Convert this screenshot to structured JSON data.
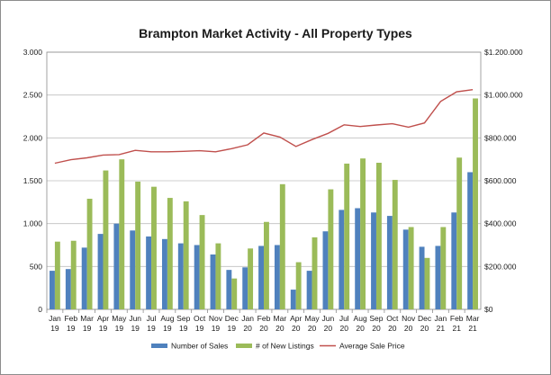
{
  "chart_data": {
    "type": "bar",
    "title": "Brampton Market Activity - All Property Types",
    "categories": [
      [
        "Jan",
        "19"
      ],
      [
        "Feb",
        "19"
      ],
      [
        "Mar",
        "19"
      ],
      [
        "Apr",
        "19"
      ],
      [
        "May",
        "19"
      ],
      [
        "Jun",
        "19"
      ],
      [
        "Jul",
        "19"
      ],
      [
        "Aug",
        "19"
      ],
      [
        "Sep",
        "19"
      ],
      [
        "Oct",
        "19"
      ],
      [
        "Nov",
        "19"
      ],
      [
        "Dec",
        "19"
      ],
      [
        "Jan",
        "20"
      ],
      [
        "Feb",
        "20"
      ],
      [
        "Mar",
        "20"
      ],
      [
        "Apr",
        "20"
      ],
      [
        "May",
        "20"
      ],
      [
        "Jun",
        "20"
      ],
      [
        "Jul",
        "20"
      ],
      [
        "Aug",
        "20"
      ],
      [
        "Sep",
        "20"
      ],
      [
        "Oct",
        "20"
      ],
      [
        "Nov",
        "20"
      ],
      [
        "Dec",
        "20"
      ],
      [
        "Jan",
        "21"
      ],
      [
        "Feb",
        "21"
      ],
      [
        "Mar",
        "21"
      ]
    ],
    "series": [
      {
        "name": "Number of Sales",
        "type": "bar",
        "axis": "left",
        "color": "#4f81bd",
        "values": [
          450,
          470,
          720,
          880,
          1000,
          920,
          850,
          820,
          770,
          750,
          640,
          460,
          490,
          740,
          750,
          230,
          450,
          910,
          1160,
          1180,
          1130,
          1090,
          930,
          730,
          740,
          1130,
          1600
        ]
      },
      {
        "name": "# of New Listings",
        "type": "bar",
        "axis": "left",
        "color": "#9bbb59",
        "values": [
          790,
          800,
          1290,
          1620,
          1750,
          1490,
          1430,
          1300,
          1260,
          1100,
          770,
          360,
          710,
          1020,
          1460,
          550,
          840,
          1400,
          1700,
          1760,
          1710,
          1510,
          960,
          600,
          960,
          1770,
          2460
        ]
      },
      {
        "name": "Average Sale Price",
        "type": "line",
        "axis": "right",
        "color": "#c0504d",
        "values": [
          682000,
          698000,
          707000,
          720000,
          722000,
          742000,
          735000,
          735000,
          737000,
          740000,
          735000,
          750000,
          768000,
          823000,
          804000,
          760000,
          792000,
          821000,
          861000,
          853000,
          860000,
          866000,
          850000,
          870000,
          970000,
          1015000,
          1025000
        ]
      }
    ],
    "y_left": {
      "ylim": [
        0,
        3000
      ],
      "ticks": [
        0,
        500,
        1000,
        1500,
        2000,
        2500,
        3000
      ],
      "tick_labels": [
        "0",
        "500",
        "1.000",
        "1.500",
        "2.000",
        "2.500",
        "3.000"
      ]
    },
    "y_right": {
      "ylim": [
        0,
        1200000
      ],
      "ticks": [
        0,
        200000,
        400000,
        600000,
        800000,
        1000000,
        1200000
      ],
      "tick_labels": [
        "$0",
        "$200.000",
        "$400.000",
        "$600.000",
        "$800.000",
        "$1.000.000",
        "$1.200.000"
      ]
    },
    "grid": true,
    "legend_position": "bottom"
  }
}
